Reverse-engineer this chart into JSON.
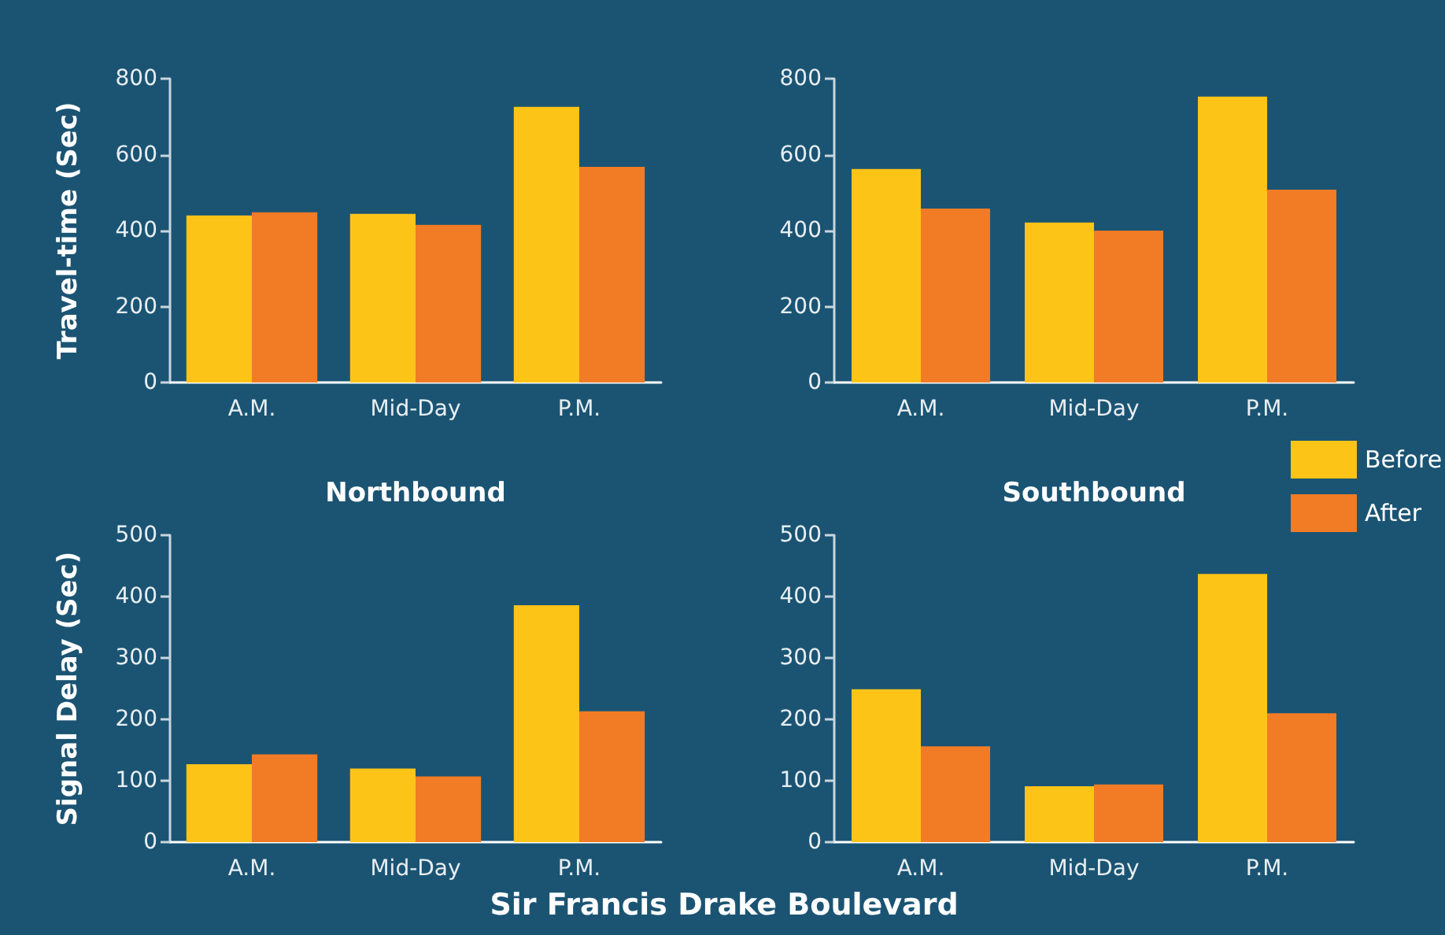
{
  "chart_data": [
    {
      "type": "bar",
      "xlabel": "Northbound",
      "ylabel": "Travel-time (Sec)",
      "categories": [
        "A.M.",
        "Mid-Day",
        "P.M."
      ],
      "series": [
        {
          "color": "#fdc418",
          "values": [
            440,
            444,
            726
          ]
        },
        {
          "color": "#f27b25",
          "values": [
            448,
            415,
            568
          ]
        }
      ],
      "ylim": [
        0,
        800
      ],
      "yticks": [
        0,
        200,
        400,
        600,
        800
      ],
      "grid": false,
      "legend": false
    },
    {
      "type": "bar",
      "xlabel": "Southbound",
      "categories": [
        "A.M.",
        "Mid-Day",
        "P.M."
      ],
      "series": [
        {
          "name": "Before",
          "color": "#fdc418",
          "values": [
            562,
            421,
            753
          ]
        },
        {
          "name": "After",
          "color": "#f27b25",
          "values": [
            458,
            400,
            508
          ]
        }
      ],
      "ylim": [
        0,
        800
      ],
      "yticks": [
        0,
        200,
        400,
        600,
        800
      ],
      "grid": false,
      "legend": "bottom right"
    },
    {
      "type": "bar",
      "ylabel": "Signal Delay (Sec)",
      "categories": [
        "A.M.",
        "Mid-Day",
        "P.M."
      ],
      "series": [
        {
          "color": "#fdc418",
          "values": [
            127,
            120,
            386
          ]
        },
        {
          "color": "#f27b25",
          "values": [
            143,
            107,
            213
          ]
        }
      ],
      "ylim": [
        0,
        500
      ],
      "yticks": [
        0,
        100,
        200,
        300,
        400,
        500
      ],
      "grid": false,
      "legend": false,
      "annotations": [
        "Sir Francis Drake Boulevard"
      ]
    },
    {
      "type": "bar",
      "categories": [
        "A.M.",
        "Mid-Day",
        "P.M."
      ],
      "series": [
        {
          "color": "#fdc418",
          "values": [
            249,
            91,
            437
          ]
        },
        {
          "color": "#f27b25",
          "values": [
            156,
            94,
            210
          ]
        }
      ],
      "ylim": [
        0,
        500
      ],
      "yticks": [
        0,
        100,
        200,
        300,
        400,
        500
      ],
      "grid": false,
      "legend": false
    }
  ]
}
